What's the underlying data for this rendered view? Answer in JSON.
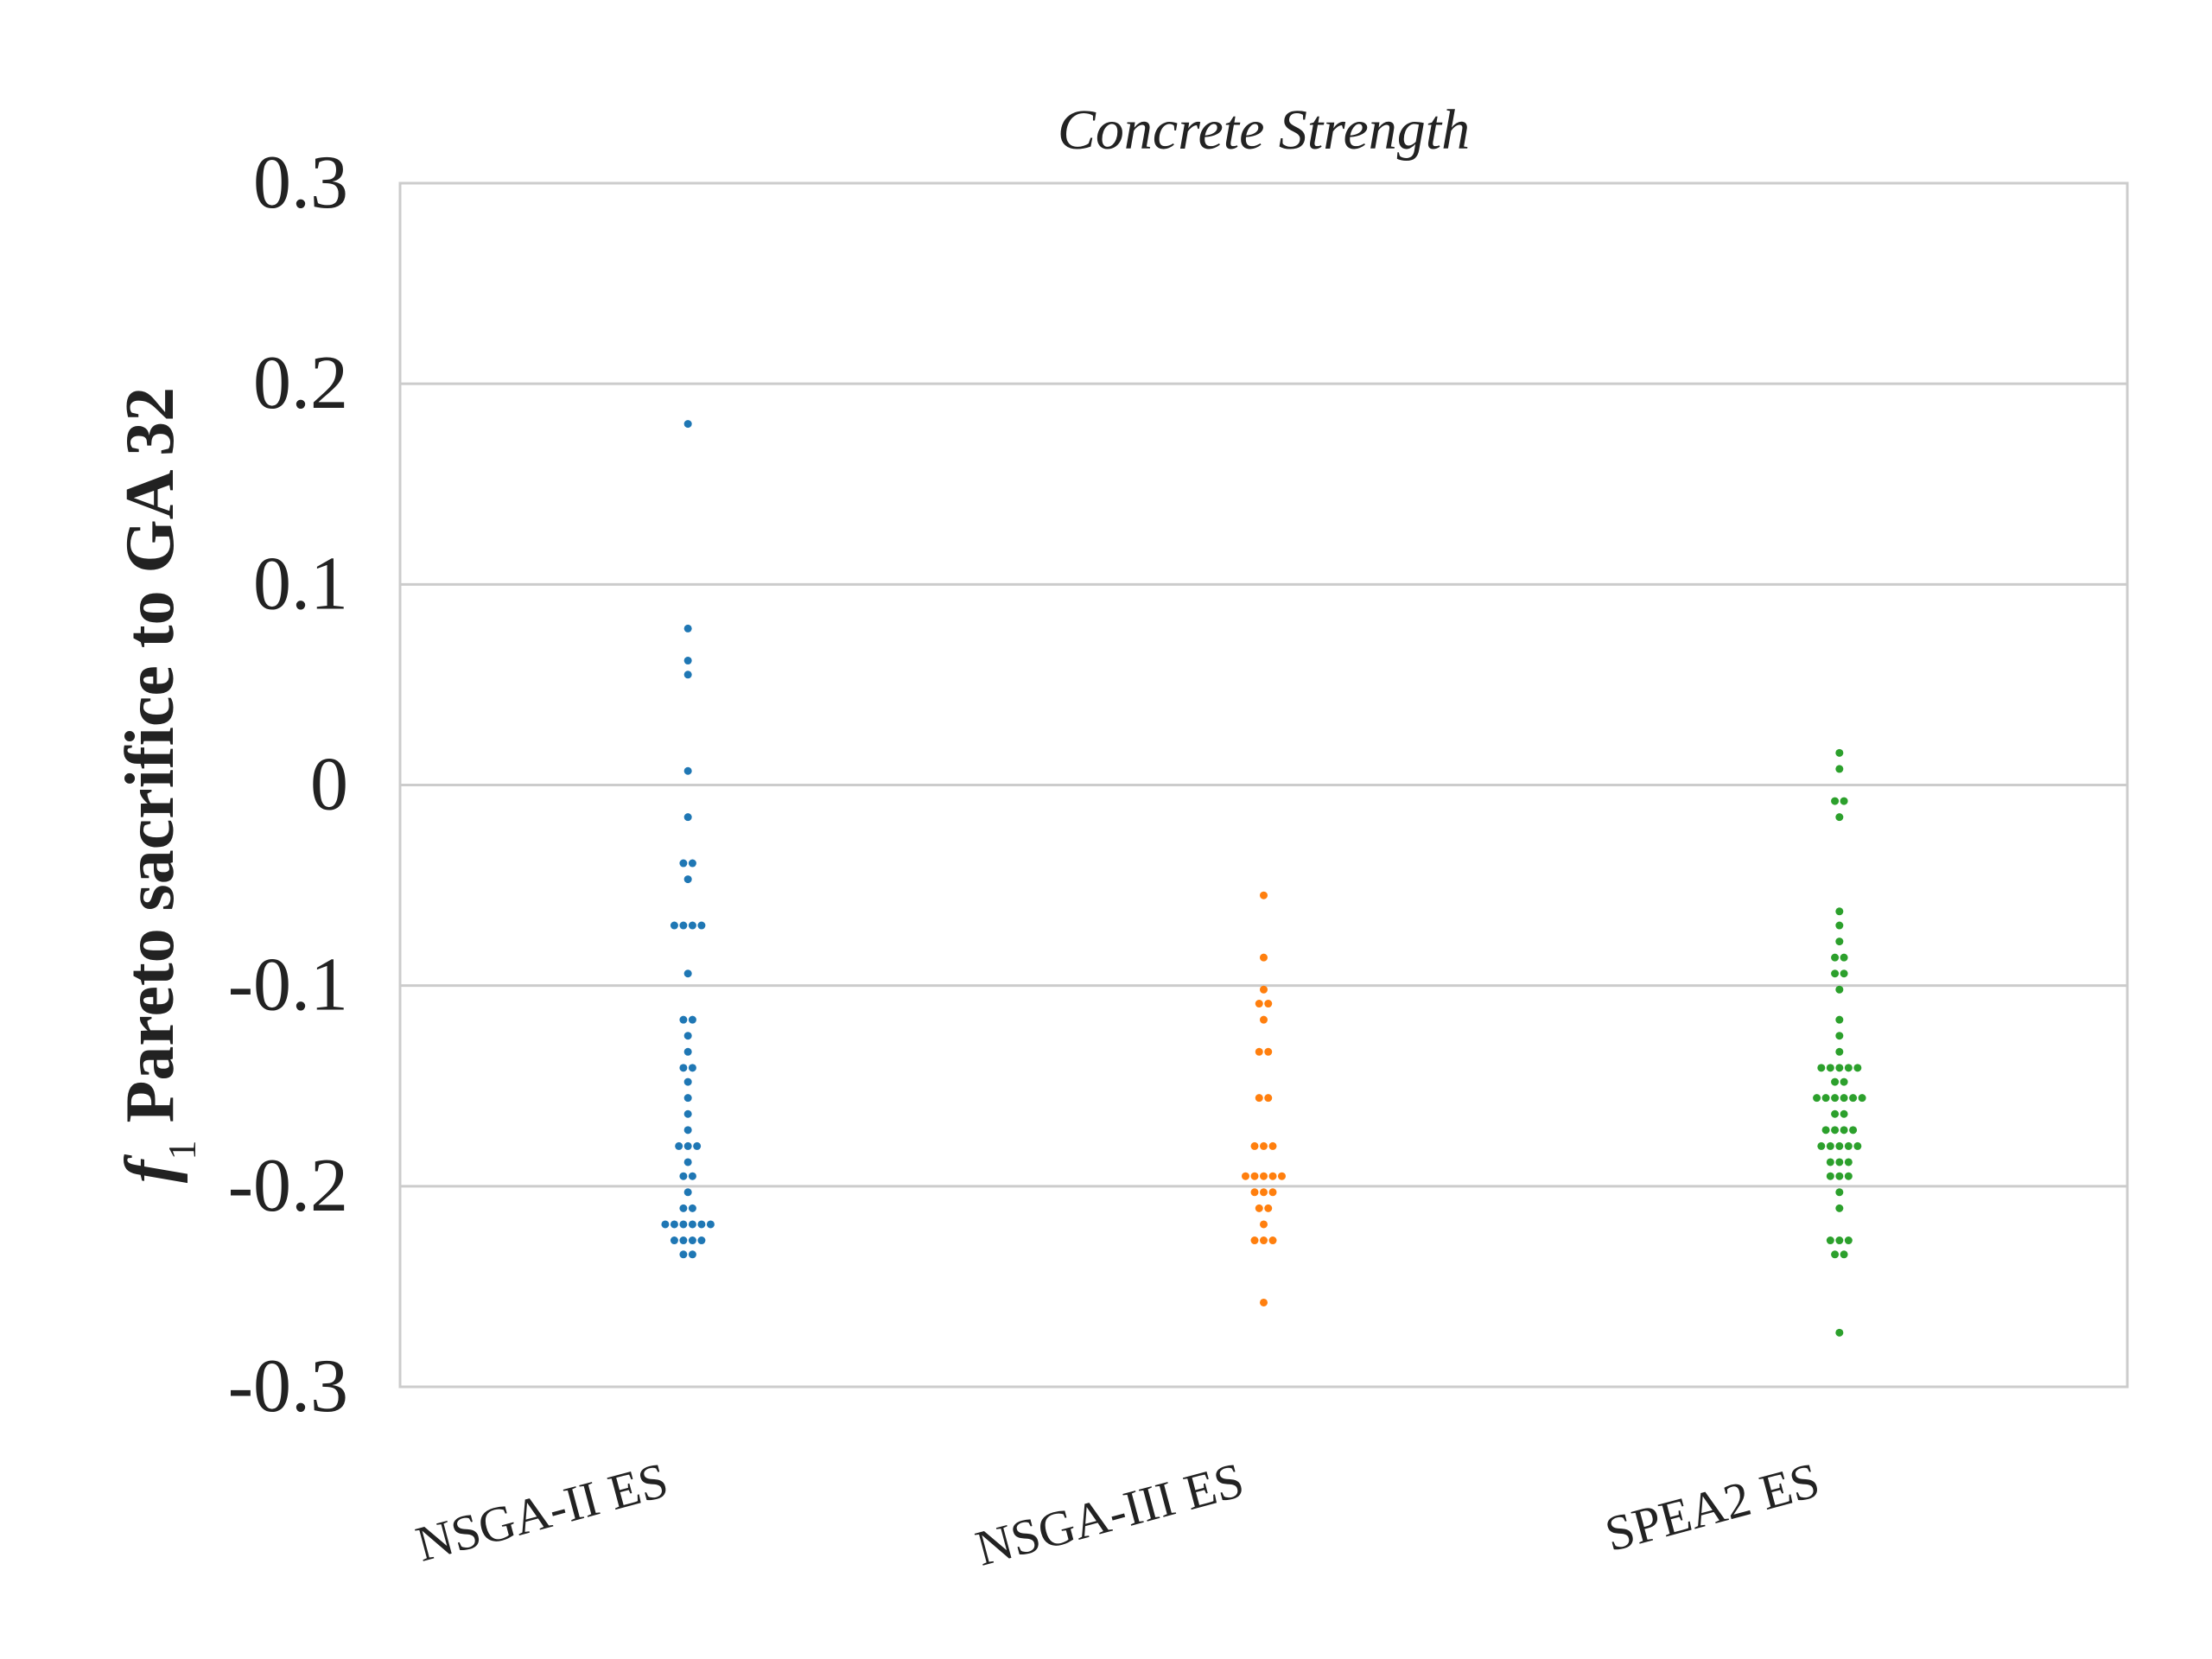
{
  "chart_data": {
    "type": "scatter",
    "subtype": "swarm",
    "title": "Concrete Strength",
    "xlabel": "",
    "ylabel_prefix": "f",
    "ylabel_subscript": "1",
    "ylabel_rest": " Pareto sacrifice to GA 32",
    "ylim": [
      -0.3,
      0.3
    ],
    "yticks": [
      0.3,
      0.2,
      0.1,
      0,
      -0.1,
      -0.2,
      -0.3
    ],
    "ytick_labels": [
      "0.3",
      "0.2",
      "0.1",
      "0",
      "-0.1",
      "-0.2",
      "-0.3"
    ],
    "grid": "y",
    "categories": [
      "NSGA-II ES",
      "NSGA-III ES",
      "SPEA2 ES"
    ],
    "series": [
      {
        "name": "NSGA-II ES",
        "color": "#1f77b4",
        "values": [
          0.18,
          0.078,
          0.062,
          0.055,
          0.007,
          -0.016,
          -0.039,
          -0.039,
          -0.047,
          -0.07,
          -0.07,
          -0.07,
          -0.07,
          -0.094,
          -0.117,
          -0.117,
          -0.125,
          -0.133,
          -0.141,
          -0.141,
          -0.148,
          -0.156,
          -0.164,
          -0.172,
          -0.18,
          -0.18,
          -0.18,
          -0.188,
          -0.195,
          -0.195,
          -0.203,
          -0.211,
          -0.211,
          -0.219,
          -0.219,
          -0.219,
          -0.219,
          -0.219,
          -0.219,
          -0.227,
          -0.227,
          -0.227,
          -0.227,
          -0.234,
          -0.234
        ]
      },
      {
        "name": "NSGA-III ES",
        "color": "#ff7f0e",
        "values": [
          -0.055,
          -0.086,
          -0.102,
          -0.109,
          -0.109,
          -0.117,
          -0.133,
          -0.133,
          -0.156,
          -0.156,
          -0.18,
          -0.18,
          -0.18,
          -0.195,
          -0.195,
          -0.195,
          -0.195,
          -0.195,
          -0.203,
          -0.203,
          -0.203,
          -0.211,
          -0.211,
          -0.219,
          -0.227,
          -0.227,
          -0.227,
          -0.258
        ]
      },
      {
        "name": "SPEA2 ES",
        "color": "#2ca02c",
        "values": [
          0.016,
          0.008,
          -0.008,
          -0.008,
          -0.016,
          -0.063,
          -0.07,
          -0.078,
          -0.086,
          -0.086,
          -0.094,
          -0.094,
          -0.102,
          -0.117,
          -0.125,
          -0.133,
          -0.141,
          -0.141,
          -0.141,
          -0.141,
          -0.141,
          -0.148,
          -0.148,
          -0.156,
          -0.156,
          -0.156,
          -0.156,
          -0.156,
          -0.156,
          -0.164,
          -0.164,
          -0.172,
          -0.172,
          -0.172,
          -0.172,
          -0.18,
          -0.18,
          -0.18,
          -0.18,
          -0.18,
          -0.188,
          -0.188,
          -0.188,
          -0.195,
          -0.195,
          -0.195,
          -0.203,
          -0.211,
          -0.227,
          -0.227,
          -0.227,
          -0.234,
          -0.234,
          -0.273
        ]
      }
    ]
  }
}
